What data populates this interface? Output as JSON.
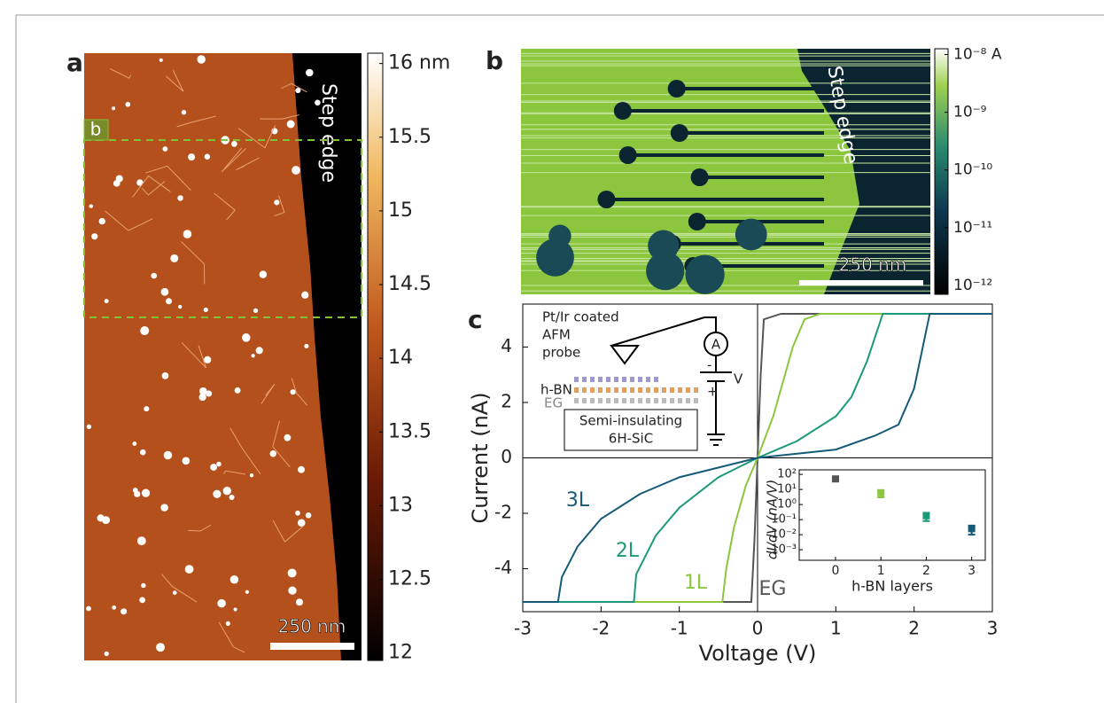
{
  "panels": {
    "a": {
      "label": "a",
      "step_edge": "Step edge",
      "box_label": "b",
      "scale_bar": "250 nm",
      "colorbar": {
        "clim": [
          11.95,
          16.07
        ],
        "ticks": [
          {
            "value": 16,
            "label": "16 nm"
          },
          15.5,
          15,
          14.5,
          14,
          13.5,
          13,
          12.5,
          12
        ]
      }
    },
    "b": {
      "label": "b",
      "step_edge": "Step edge",
      "scale_bar": "250 nm",
      "colorbar": {
        "log": true,
        "clim": [
          7e-13,
          1.26e-08
        ],
        "ticks": [
          {
            "value": 1e-08,
            "label": "10⁻⁸ A"
          },
          {
            "value": 1e-09,
            "label": "10⁻⁹"
          },
          {
            "value": 1e-10,
            "label": "10⁻¹⁰"
          },
          {
            "value": 1e-11,
            "label": "10⁻¹¹"
          },
          {
            "value": 1e-12,
            "label": "10⁻¹²"
          }
        ]
      }
    },
    "c": {
      "label": "c",
      "schematic": {
        "probe": [
          "Pt/Ir coated",
          "AFM",
          "probe"
        ],
        "ammeter": "A",
        "minus": "-",
        "plus": "+",
        "voltage": "V",
        "hbn": "h-BN",
        "eg": "EG",
        "substrate": [
          "Semi-insulating",
          "6H-SiC"
        ]
      }
    }
  },
  "chart_data": [
    {
      "type": "line",
      "xlabel": "Voltage (V)",
      "ylabel": "Current (nA)",
      "xlim": [
        -3,
        3
      ],
      "ylim": [
        -5.55,
        5.55
      ],
      "xticks": [
        -3,
        -2,
        -1,
        0,
        1,
        2,
        3
      ],
      "yticks": [
        -4,
        -2,
        0,
        2,
        4
      ],
      "series": [
        {
          "name": "EG",
          "color": "#555555",
          "x": [
            -3,
            -0.08,
            -0.04,
            0,
            0.04,
            0.08,
            0.3,
            3
          ],
          "values": [
            -5.2,
            -5.2,
            -3,
            0,
            3,
            5,
            5.2,
            5.2
          ]
        },
        {
          "name": "1L",
          "color": "#8cc63f",
          "x": [
            -3,
            -0.45,
            -0.4,
            -0.3,
            -0.15,
            0,
            0.2,
            0.35,
            0.45,
            0.6,
            0.8,
            3
          ],
          "values": [
            -5.2,
            -5.2,
            -4,
            -2.5,
            -1,
            0,
            1.5,
            3,
            4,
            5,
            5.2,
            5.2
          ]
        },
        {
          "name": "2L",
          "color": "#1a9a78",
          "x": [
            -3,
            -1.58,
            -1.55,
            -1.3,
            -1,
            -0.5,
            0,
            0.5,
            1,
            1.2,
            1.4,
            1.6,
            3
          ],
          "values": [
            -5.2,
            -5.2,
            -4.2,
            -2.8,
            -1.8,
            -0.7,
            0,
            0.6,
            1.5,
            2.2,
            3.5,
            5.2,
            5.2
          ]
        },
        {
          "name": "3L",
          "color": "#155a78",
          "x": [
            -3,
            -2.55,
            -2.5,
            -2.3,
            -2,
            -1.5,
            -1,
            0,
            1,
            1.5,
            1.8,
            2,
            2.2,
            3
          ],
          "values": [
            -5.2,
            -5.2,
            -4.3,
            -3.2,
            -2.2,
            -1.3,
            -0.7,
            0,
            0.3,
            0.8,
            1.2,
            2.5,
            5.2,
            5.2
          ]
        }
      ]
    },
    {
      "type": "scatter",
      "xlabel": "h-BN layers",
      "ylabel": "dI/dV (nA/V)",
      "log_y": true,
      "xlim": [
        -0.8,
        3.3
      ],
      "ylim": [
        0.0002,
        200
      ],
      "xticks": [
        0,
        1,
        2,
        3
      ],
      "yticks": [
        {
          "value": 100,
          "label": "10²"
        },
        {
          "value": 10,
          "label": "10¹"
        },
        {
          "value": 1,
          "label": "10⁰"
        },
        {
          "value": 0.1,
          "label": "10⁻¹"
        },
        {
          "value": 0.01,
          "label": "10⁻²"
        },
        {
          "value": 0.001,
          "label": "10⁻³"
        }
      ],
      "x": [
        0,
        1,
        2,
        3
      ],
      "values": [
        50,
        6,
        0.18,
        0.025
      ],
      "errors": [
        5,
        3,
        0.1,
        0.015
      ],
      "colors": [
        "#555555",
        "#8cc63f",
        "#1a9a78",
        "#155a78"
      ]
    }
  ]
}
